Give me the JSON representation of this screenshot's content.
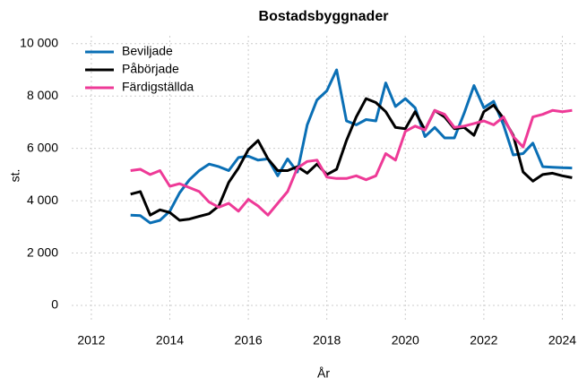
{
  "chart_data": {
    "type": "line",
    "title": "Bostadsbyggnader",
    "x_label": "År",
    "y_label": "st.",
    "x": [
      2013,
      2013.25,
      2013.5,
      2013.75,
      2014,
      2014.25,
      2014.5,
      2014.75,
      2015,
      2015.25,
      2015.5,
      2015.75,
      2016,
      2016.25,
      2016.5,
      2016.75,
      2017,
      2017.25,
      2017.5,
      2017.75,
      2018,
      2018.25,
      2018.5,
      2018.75,
      2019,
      2019.25,
      2019.5,
      2019.75,
      2020,
      2020.25,
      2020.5,
      2020.75,
      2021,
      2021.25,
      2021.5,
      2021.75,
      2022,
      2022.25,
      2022.5,
      2022.75,
      2023,
      2023.25,
      2023.5,
      2023.75,
      2024,
      2024.25
    ],
    "series": [
      {
        "name": "Beviljade",
        "color": "#0a6fb5",
        "values": [
          3450,
          3430,
          3150,
          3250,
          3600,
          4300,
          4800,
          5150,
          5400,
          5300,
          5150,
          5650,
          5700,
          5550,
          5600,
          4950,
          5600,
          5100,
          6900,
          7850,
          8200,
          9000,
          7050,
          6900,
          7100,
          7050,
          8500,
          7600,
          7900,
          7550,
          6450,
          6800,
          6400,
          6400,
          7350,
          8400,
          7550,
          7800,
          6900,
          5750,
          5800,
          6200,
          5300,
          5280,
          5260,
          5250
        ]
      },
      {
        "name": "Påbörjade",
        "color": "#000000",
        "values": [
          4250,
          4350,
          3450,
          3650,
          3550,
          3250,
          3300,
          3400,
          3500,
          3800,
          4700,
          5250,
          5950,
          6300,
          5600,
          5150,
          5150,
          5300,
          5050,
          5400,
          5000,
          5200,
          6300,
          7200,
          7900,
          7750,
          7400,
          6800,
          6750,
          7400,
          6700,
          7450,
          7200,
          6750,
          6800,
          6500,
          7400,
          7650,
          7150,
          6500,
          5100,
          4750,
          5000,
          5050,
          4950,
          4880
        ]
      },
      {
        "name": "Färdigställda",
        "color": "#ee3a97",
        "values": [
          5150,
          5200,
          5000,
          5150,
          4550,
          4650,
          4500,
          4350,
          3950,
          3750,
          3900,
          3600,
          4050,
          3800,
          3450,
          3900,
          4350,
          5250,
          5500,
          5550,
          4900,
          4850,
          4850,
          4950,
          4800,
          4950,
          5800,
          5550,
          6650,
          6850,
          6700,
          7450,
          7300,
          6800,
          6850,
          6950,
          7050,
          6900,
          7200,
          6450,
          6050,
          7200,
          7300,
          7450,
          7400,
          7450
        ]
      }
    ],
    "xlim": [
      2011.5,
      2024.4
    ],
    "xticks": [
      2012,
      2014,
      2016,
      2018,
      2020,
      2022,
      2024
    ],
    "ylim": [
      -650,
      10300
    ],
    "yticks": [
      0,
      {
        "value": 2000,
        "label": "2 000"
      },
      {
        "value": 4000,
        "label": "4 000"
      },
      {
        "value": 6000,
        "label": "6 000"
      },
      {
        "value": 8000,
        "label": "8 000"
      },
      {
        "value": 10000,
        "label": "10 000"
      }
    ],
    "grid": true,
    "legend_position": "top-left"
  }
}
